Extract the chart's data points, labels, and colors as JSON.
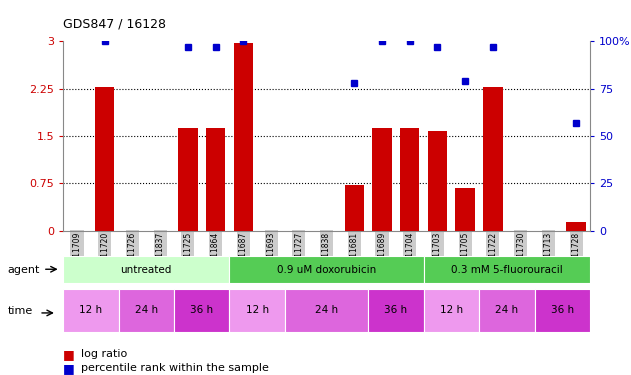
{
  "title": "GDS847 / 16128",
  "samples": [
    "GSM11709",
    "GSM11720",
    "GSM11726",
    "GSM11837",
    "GSM11725",
    "GSM11864",
    "GSM11687",
    "GSM11693",
    "GSM11727",
    "GSM11838",
    "GSM11681",
    "GSM11689",
    "GSM11704",
    "GSM11703",
    "GSM11705",
    "GSM11722",
    "GSM11730",
    "GSM11713",
    "GSM11728"
  ],
  "log_ratio": [
    0,
    2.28,
    0,
    0,
    1.63,
    1.63,
    2.98,
    0,
    0,
    0,
    0.72,
    1.63,
    1.63,
    1.58,
    0.68,
    2.28,
    0,
    0,
    0.13
  ],
  "percentile_rank": [
    null,
    100,
    null,
    null,
    97,
    97,
    100,
    null,
    null,
    null,
    78,
    100,
    100,
    97,
    79,
    97,
    null,
    null,
    57
  ],
  "bar_color": "#cc0000",
  "dot_color": "#0000cc",
  "ylim_left": [
    0,
    3
  ],
  "ylim_right": [
    0,
    100
  ],
  "yticks_left": [
    0,
    0.75,
    1.5,
    2.25,
    3
  ],
  "yticks_right": [
    0,
    25,
    50,
    75,
    100
  ],
  "ytick_labels_left": [
    "0",
    "0.75",
    "1.5",
    "2.25",
    "3"
  ],
  "ytick_labels_right": [
    "0",
    "25",
    "50",
    "75",
    "100%"
  ],
  "hlines": [
    0.75,
    1.5,
    2.25
  ],
  "agent_groups": [
    {
      "label": "untreated",
      "start": 0,
      "end": 6,
      "color": "#ccffcc"
    },
    {
      "label": "0.9 uM doxorubicin",
      "start": 6,
      "end": 13,
      "color": "#55cc55"
    },
    {
      "label": "0.3 mM 5-fluorouracil",
      "start": 13,
      "end": 19,
      "color": "#55cc55"
    }
  ],
  "time_groups": [
    {
      "label": "12 h",
      "start": 0,
      "end": 2,
      "color": "#ee99ee"
    },
    {
      "label": "24 h",
      "start": 2,
      "end": 4,
      "color": "#dd66dd"
    },
    {
      "label": "36 h",
      "start": 4,
      "end": 6,
      "color": "#cc33cc"
    },
    {
      "label": "12 h",
      "start": 6,
      "end": 8,
      "color": "#ee99ee"
    },
    {
      "label": "24 h",
      "start": 8,
      "end": 11,
      "color": "#dd66dd"
    },
    {
      "label": "36 h",
      "start": 11,
      "end": 13,
      "color": "#cc33cc"
    },
    {
      "label": "12 h",
      "start": 13,
      "end": 15,
      "color": "#ee99ee"
    },
    {
      "label": "24 h",
      "start": 15,
      "end": 17,
      "color": "#dd66dd"
    },
    {
      "label": "36 h",
      "start": 17,
      "end": 19,
      "color": "#cc33cc"
    }
  ],
  "sample_label_bg": "#cccccc",
  "legend_bar_label": "log ratio",
  "legend_dot_label": "percentile rank within the sample",
  "background_color": "#ffffff",
  "tick_label_color_left": "#cc0000",
  "tick_label_color_right": "#0000cc"
}
